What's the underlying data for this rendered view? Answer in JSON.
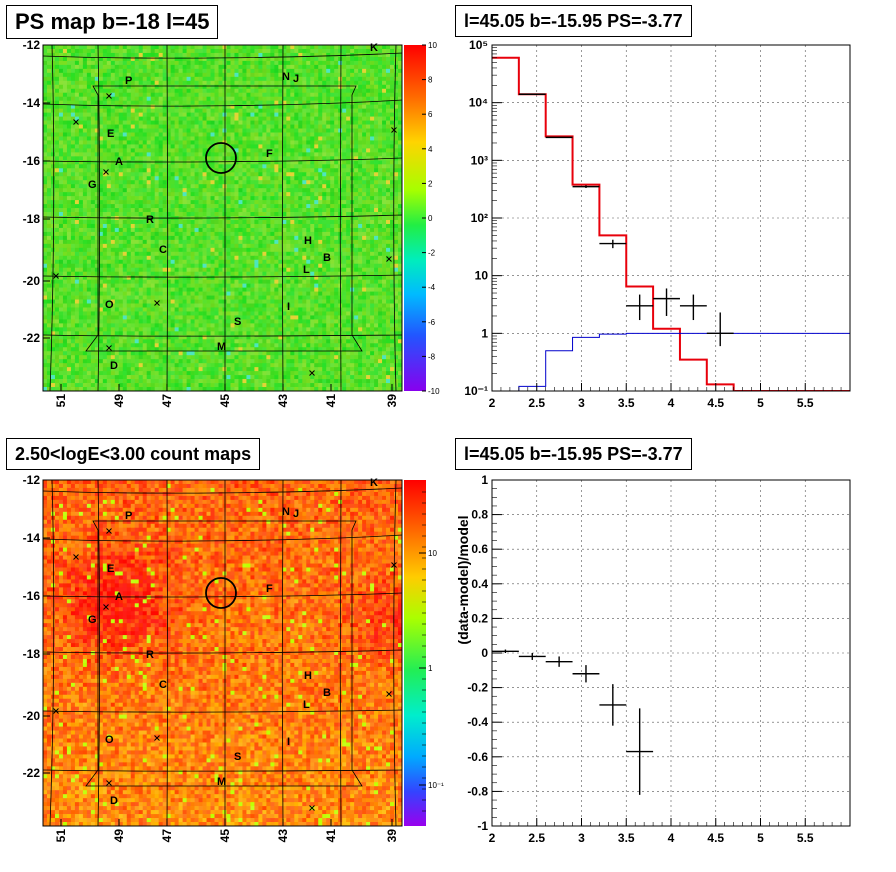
{
  "panels": {
    "ps_map": {
      "title": "PS map b=-18 l=45",
      "y_ticks": [
        "-12",
        "-14",
        "-16",
        "-18",
        "-20",
        "-22"
      ],
      "x_ticks": [
        "51",
        "49",
        "47",
        "45",
        "43",
        "41",
        "39"
      ],
      "colorbar_ticks": [
        "10",
        "8",
        "6",
        "4",
        "2",
        "0",
        "-2",
        "-4",
        "-6",
        "-8",
        "-10"
      ],
      "colorbar_scale": "linear",
      "sources": [
        "P",
        "N",
        "J",
        "K",
        "E",
        "A",
        "F",
        "G",
        "R",
        "C",
        "H",
        "B",
        "L",
        "O",
        "I",
        "S",
        "M",
        "D"
      ]
    },
    "count_map": {
      "title": "2.50<logE<3.00 count maps",
      "y_ticks": [
        "-12",
        "-14",
        "-16",
        "-18",
        "-20",
        "-22"
      ],
      "x_ticks": [
        "51",
        "49",
        "47",
        "45",
        "43",
        "41",
        "39"
      ],
      "colorbar_ticks": [
        "10",
        "1",
        "10⁻¹"
      ],
      "colorbar_scale": "log",
      "sources": [
        "P",
        "N",
        "J",
        "K",
        "E",
        "A",
        "F",
        "G",
        "R",
        "C",
        "H",
        "B",
        "L",
        "O",
        "I",
        "S",
        "M",
        "D"
      ]
    }
  },
  "chart_data": [
    {
      "type": "step",
      "title": "l=45.05 b=-15.95 PS=-3.77",
      "xlabel": "",
      "ylabel": "",
      "xlim": [
        2,
        6
      ],
      "ylog": true,
      "ylim": [
        0.1,
        100000
      ],
      "grid": true,
      "x_tick_labels": [
        "2",
        "2.5",
        "3",
        "3.5",
        "4",
        "4.5",
        "5",
        "5.5"
      ],
      "y_tick_labels": [
        "10⁻¹",
        "1",
        "10",
        "10²",
        "10³",
        "10⁴",
        "10⁵"
      ],
      "bin_edges": [
        2.0,
        2.3,
        2.6,
        2.9,
        3.2,
        3.5,
        3.8,
        4.1,
        4.4,
        4.7,
        5.0,
        5.3,
        5.6,
        6.0
      ],
      "series": [
        {
          "color": "#e8000b",
          "values": [
            60000,
            14000,
            2600,
            380,
            50,
            6.5,
            1.2,
            0.35,
            0.13,
            0.1,
            0.1,
            0.1,
            0.1
          ]
        },
        {
          "color": "#0000cc",
          "values": [
            0.1,
            0.12,
            0.5,
            0.85,
            0.97,
            1.0,
            1.0,
            1.0,
            1.0,
            1.0,
            1.0,
            1.0,
            1.0
          ]
        }
      ],
      "points": {
        "color": "#000000",
        "x": [
          2.45,
          2.75,
          3.05,
          3.35,
          3.65,
          3.95,
          4.25,
          4.55
        ],
        "y": [
          14000,
          2500,
          350,
          36,
          3,
          4,
          3,
          1
        ],
        "yerr_low": [
          13882,
          2450,
          331,
          30,
          1.7,
          2.0,
          1.7,
          0.6
        ],
        "yerr_high": [
          14118,
          2550,
          369,
          42,
          4.7,
          6.0,
          4.7,
          2.3
        ],
        "xerr": 0.15
      }
    },
    {
      "type": "scatter",
      "title": "l=45.05 b=-15.95 PS=-3.77",
      "xlabel": "",
      "ylabel": "(data-model)/model",
      "xlim": [
        2,
        6
      ],
      "ylim": [
        -1,
        1
      ],
      "grid": true,
      "x_tick_labels": [
        "2",
        "2.5",
        "3",
        "3.5",
        "4",
        "4.5",
        "5",
        "5.5"
      ],
      "y_tick_labels": [
        "-1",
        "-0.8",
        "-0.6",
        "-0.4",
        "-0.2",
        "0",
        "0.2",
        "0.4",
        "0.6",
        "0.8",
        "1"
      ],
      "points": {
        "color": "#000000",
        "x": [
          2.15,
          2.45,
          2.75,
          3.05,
          3.35,
          3.65
        ],
        "y": [
          0.01,
          -0.02,
          -0.05,
          -0.12,
          -0.3,
          -0.57
        ],
        "yerr": [
          0.01,
          0.02,
          0.03,
          0.05,
          0.12,
          0.25
        ],
        "xerr": 0.15
      }
    }
  ]
}
